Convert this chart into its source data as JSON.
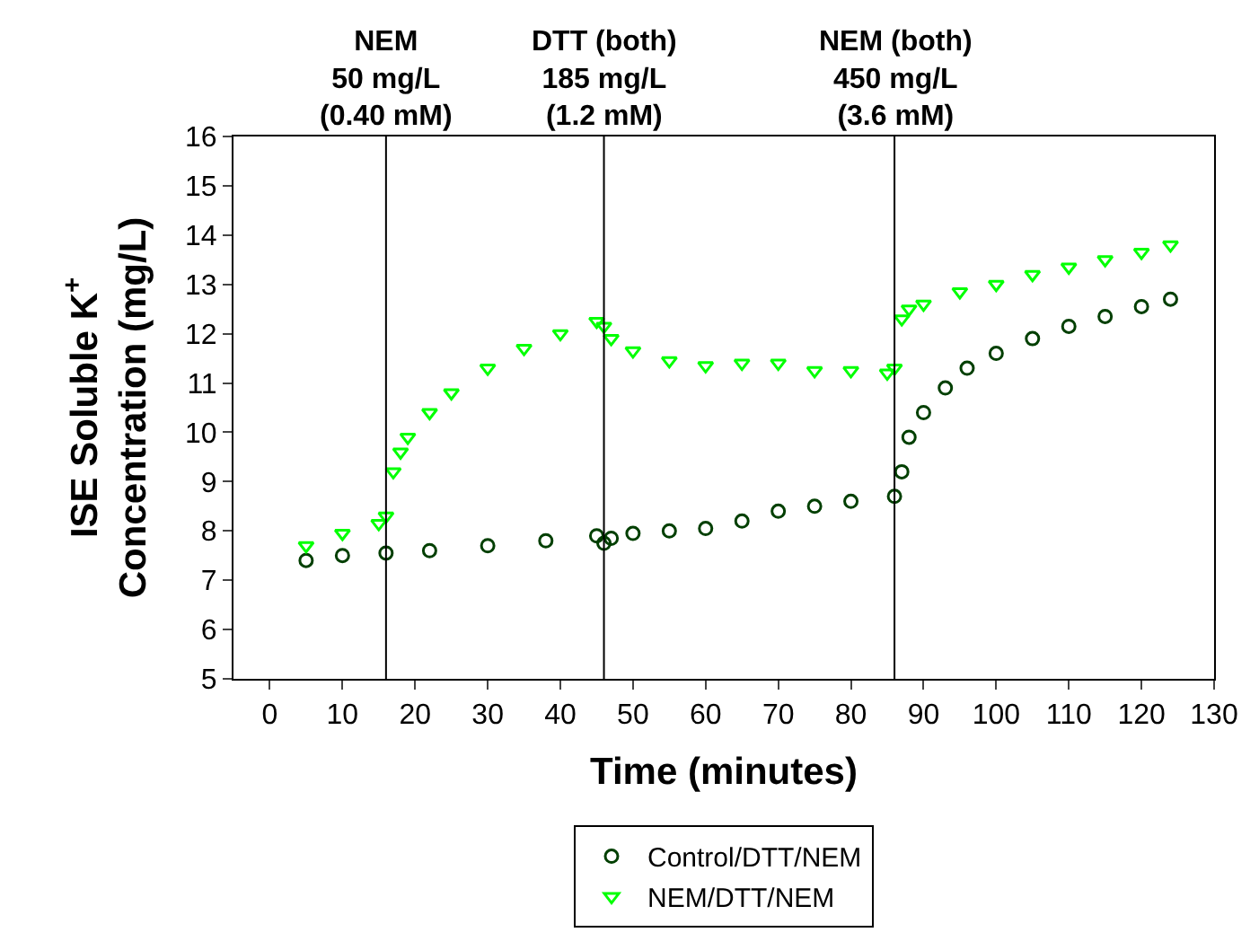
{
  "chart_data": {
    "type": "scatter",
    "xlabel": "Time (minutes)",
    "ylabel": "ISE Soluble K$^{+}$\nConcentration (mg/L)",
    "xlim": [
      -5,
      130
    ],
    "xticks": [
      0,
      10,
      20,
      30,
      40,
      50,
      60,
      70,
      80,
      90,
      100,
      110,
      120,
      130
    ],
    "ylim": [
      5,
      16
    ],
    "yticks": [
      5,
      6,
      7,
      8,
      9,
      10,
      11,
      12,
      13,
      14,
      15,
      16
    ],
    "legend": "bottom",
    "ref_lines": [
      {
        "axis": "x",
        "value": 16,
        "label": "NEM\n50 mg/L\n(0.40 mM)",
        "color": "#000000"
      },
      {
        "axis": "x",
        "value": 46,
        "label": "DTT (both)\n185 mg/L\n(1.2 mM)",
        "color": "#000000"
      },
      {
        "axis": "x",
        "value": 86,
        "label": "NEM (both)\n450 mg/L\n(3.6 mM)",
        "color": "#000000"
      }
    ],
    "series": [
      {
        "name": "Control/DTT/NEM",
        "color": "#003f00",
        "marker": "circle",
        "x": [
          5,
          10,
          16,
          22,
          30,
          38,
          45,
          46,
          47,
          50,
          55,
          60,
          65,
          70,
          75,
          80,
          86,
          87,
          88,
          90,
          93,
          96,
          100,
          105,
          110,
          115,
          120,
          124
        ],
        "values": [
          7.4,
          7.5,
          7.55,
          7.6,
          7.7,
          7.8,
          7.9,
          7.75,
          7.85,
          7.95,
          8.0,
          8.05,
          8.2,
          8.4,
          8.5,
          8.6,
          8.7,
          9.2,
          9.9,
          10.4,
          10.9,
          11.3,
          11.6,
          11.9,
          12.15,
          12.35,
          12.55,
          12.7
        ]
      },
      {
        "name": "NEM/DTT/NEM",
        "color": "#00ff00",
        "marker": "triangle",
        "x": [
          5,
          10,
          15,
          16,
          17,
          18,
          19,
          22,
          25,
          30,
          35,
          40,
          45,
          46,
          47,
          50,
          55,
          60,
          65,
          70,
          75,
          80,
          85,
          86,
          87,
          88,
          90,
          95,
          100,
          105,
          110,
          115,
          120,
          124
        ],
        "values": [
          7.7,
          7.95,
          8.15,
          8.3,
          9.2,
          9.6,
          9.9,
          10.4,
          10.8,
          11.3,
          11.7,
          12.0,
          12.25,
          12.15,
          11.9,
          11.65,
          11.45,
          11.35,
          11.4,
          11.4,
          11.25,
          11.25,
          11.2,
          11.3,
          12.3,
          12.5,
          12.6,
          12.85,
          13.0,
          13.2,
          13.35,
          13.5,
          13.65,
          13.8
        ]
      }
    ]
  }
}
